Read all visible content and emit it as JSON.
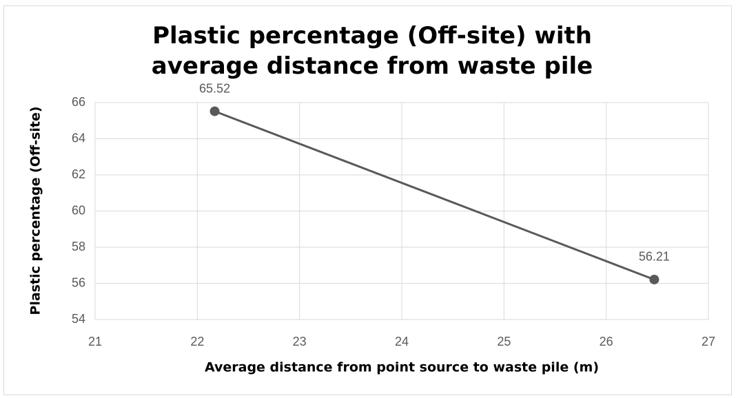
{
  "chart_data": {
    "type": "line",
    "title": "Plastic percentage (Off-site) with average distance from waste pile",
    "x_label": "Average distance from point source to waste pile (m)",
    "y_label": "Plastic percentage (Off-site)",
    "x": [
      22.17,
      26.47
    ],
    "series": [
      {
        "color": "#595959",
        "values": [
          65.52,
          56.21
        ]
      }
    ],
    "xlim": [
      21,
      27
    ],
    "xticks": [
      21,
      22,
      23,
      24,
      25,
      26,
      27
    ],
    "ylim": [
      54,
      66
    ],
    "yticks": [
      54,
      56,
      58,
      60,
      62,
      64,
      66
    ],
    "grid": true
  }
}
